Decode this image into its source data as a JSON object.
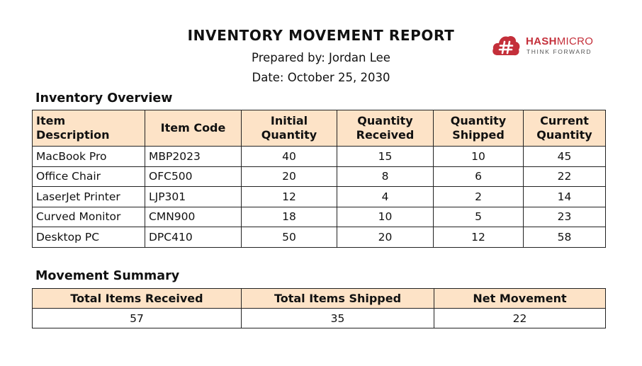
{
  "header": {
    "title": "INVENTORY MOVEMENT REPORT",
    "prepared_by": "Prepared by: Jordan Lee",
    "date": "Date: October 25, 2030"
  },
  "logo": {
    "name_bold": "HASH",
    "name_regular": "MICRO",
    "tagline": "THINK FORWARD",
    "icon": "hash-cloud-logo-icon",
    "color": "#c42f3a"
  },
  "overview": {
    "heading": "Inventory Overview",
    "columns": [
      "Item Description",
      "Item Code",
      "Initial Quantity",
      "Quantity Received",
      "Quantity Shipped",
      "Current Quantity"
    ],
    "rows": [
      [
        "MacBook Pro",
        "MBP2023",
        "40",
        "15",
        "10",
        "45"
      ],
      [
        "Office Chair",
        "OFC500",
        "20",
        "8",
        "6",
        "22"
      ],
      [
        "LaserJet Printer",
        "LJP301",
        "12",
        "4",
        "2",
        "14"
      ],
      [
        "Curved Monitor",
        "CMN900",
        "18",
        "10",
        "5",
        "23"
      ],
      [
        "Desktop PC",
        "DPC410",
        "50",
        "20",
        "12",
        "58"
      ]
    ]
  },
  "summary": {
    "heading": "Movement Summary",
    "columns": [
      "Total Items Received",
      "Total Items Shipped",
      "Net Movement"
    ],
    "values": [
      "57",
      "35",
      "22"
    ]
  },
  "colors": {
    "header_fill": "#fde3c7",
    "border": "#222222",
    "brand": "#c42f3a"
  }
}
